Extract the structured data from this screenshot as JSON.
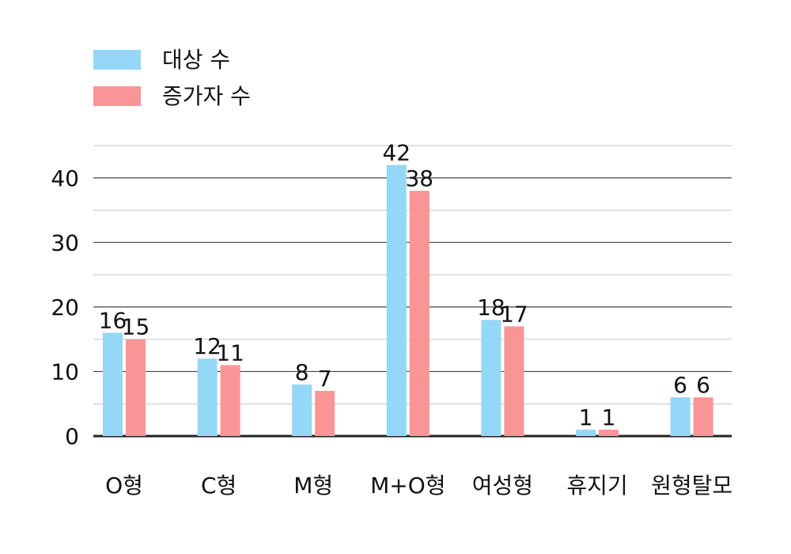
{
  "chart_data": {
    "type": "bar",
    "categories": [
      "O형",
      "C형",
      "M형",
      "M+O형",
      "여성형",
      "휴지기",
      "원형탈모"
    ],
    "series": [
      {
        "name": "대상 수",
        "values": [
          16,
          12,
          8,
          42,
          18,
          1,
          6
        ],
        "color": "#95d7f6"
      },
      {
        "name": "증가자 수",
        "values": [
          15,
          11,
          7,
          38,
          17,
          1,
          6
        ],
        "color": "#f99596"
      }
    ],
    "yticks": [
      "0",
      "10",
      "20",
      "30",
      "40"
    ],
    "ylim": [
      0,
      45
    ],
    "grid": true,
    "legend_position": "top-left",
    "colors": {
      "major_grid": "#444444",
      "minor_grid": "#cfcfcf",
      "axis": "#222222",
      "text": "#111111"
    }
  }
}
